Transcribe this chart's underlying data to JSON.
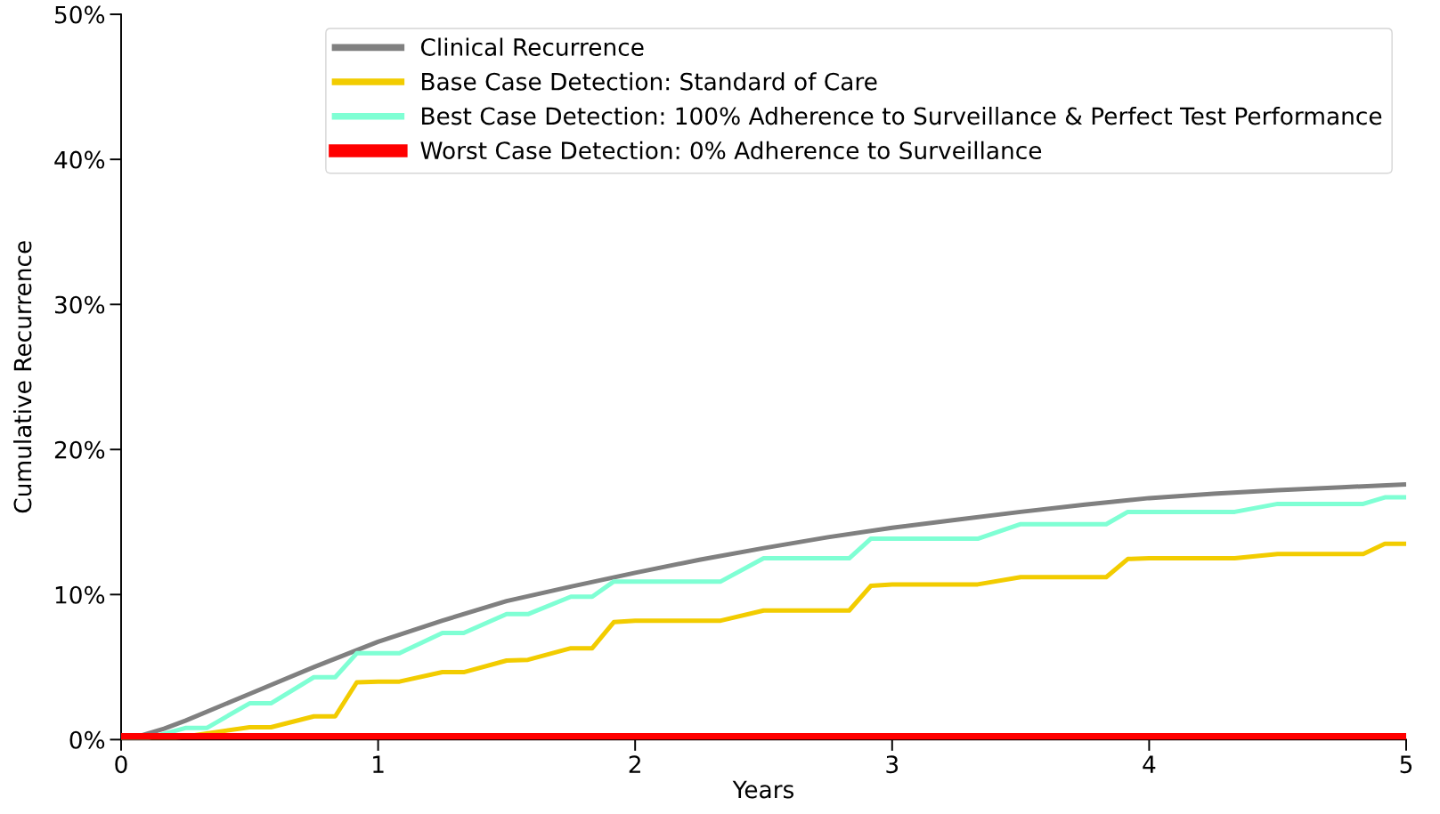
{
  "chart_data": {
    "type": "line",
    "xlabel": "Years",
    "ylabel": "Cumulative Recurrence",
    "xlim": [
      0,
      5
    ],
    "xticks": [
      0,
      1,
      2,
      3,
      4,
      5
    ],
    "ylim": [
      0,
      50
    ],
    "yticks": [
      {
        "value": 0,
        "label": "0%"
      },
      {
        "value": 10,
        "label": "10%"
      },
      {
        "value": 20,
        "label": "20%"
      },
      {
        "value": 30,
        "label": "30%"
      },
      {
        "value": 40,
        "label": "40%"
      },
      {
        "value": 50,
        "label": "50%"
      }
    ],
    "grid": false,
    "legend": "top right",
    "line_style": "solid",
    "series": [
      {
        "name": "Clinical Recurrence",
        "color": "#808080",
        "x": [
          0,
          0.083,
          0.167,
          0.25,
          0.5,
          0.75,
          1.0,
          1.25,
          1.5,
          1.75,
          2.0,
          2.25,
          2.5,
          2.75,
          3.0,
          3.25,
          3.5,
          3.75,
          4.0,
          4.25,
          4.5,
          4.75,
          5.0
        ],
        "values": [
          0,
          0.3,
          0.75,
          1.3,
          3.15,
          5.0,
          6.75,
          8.2,
          9.55,
          10.55,
          11.5,
          12.4,
          13.2,
          13.95,
          14.6,
          15.15,
          15.7,
          16.2,
          16.65,
          16.95,
          17.2,
          17.4,
          17.6
        ]
      },
      {
        "name": "Base Case Detection: Standard of Care",
        "color": "#f2cc00",
        "x": [
          0,
          0.167,
          0.5,
          0.583,
          0.75,
          0.833,
          0.917,
          1.0,
          1.083,
          1.25,
          1.333,
          1.5,
          1.583,
          1.75,
          1.833,
          1.917,
          2.0,
          2.333,
          2.5,
          2.833,
          2.917,
          3.0,
          3.333,
          3.5,
          3.833,
          3.917,
          4.0,
          4.333,
          4.5,
          4.833,
          4.917,
          5.0
        ],
        "values": [
          0,
          0,
          0.85,
          0.85,
          1.6,
          1.6,
          3.95,
          4.0,
          4.0,
          4.65,
          4.65,
          5.45,
          5.5,
          6.3,
          6.3,
          8.1,
          8.2,
          8.2,
          8.9,
          8.9,
          10.6,
          10.7,
          10.7,
          11.2,
          11.2,
          12.45,
          12.5,
          12.5,
          12.8,
          12.8,
          13.5,
          13.5
        ]
      },
      {
        "name": "Best Case Detection: 100% Adherence to Surveillance & Perfect Test Performance",
        "color": "#7fffd4",
        "x": [
          0,
          0.083,
          0.25,
          0.333,
          0.5,
          0.583,
          0.75,
          0.833,
          0.917,
          1.083,
          1.25,
          1.333,
          1.5,
          1.583,
          1.75,
          1.833,
          1.917,
          2.333,
          2.5,
          2.833,
          2.917,
          3.333,
          3.5,
          3.833,
          3.917,
          4.333,
          4.5,
          4.833,
          4.917,
          5.0
        ],
        "values": [
          0,
          0,
          0.8,
          0.8,
          2.5,
          2.5,
          4.3,
          4.3,
          5.95,
          5.95,
          7.35,
          7.35,
          8.65,
          8.65,
          9.85,
          9.85,
          10.9,
          10.9,
          12.5,
          12.5,
          13.85,
          13.85,
          14.85,
          14.85,
          15.7,
          15.7,
          16.25,
          16.25,
          16.7,
          16.7
        ]
      },
      {
        "name": "Worst Case Detection: 0% Adherence to Surveillance",
        "color": "#ff0000",
        "x": [
          0,
          5
        ],
        "values": [
          0,
          0
        ]
      }
    ]
  }
}
